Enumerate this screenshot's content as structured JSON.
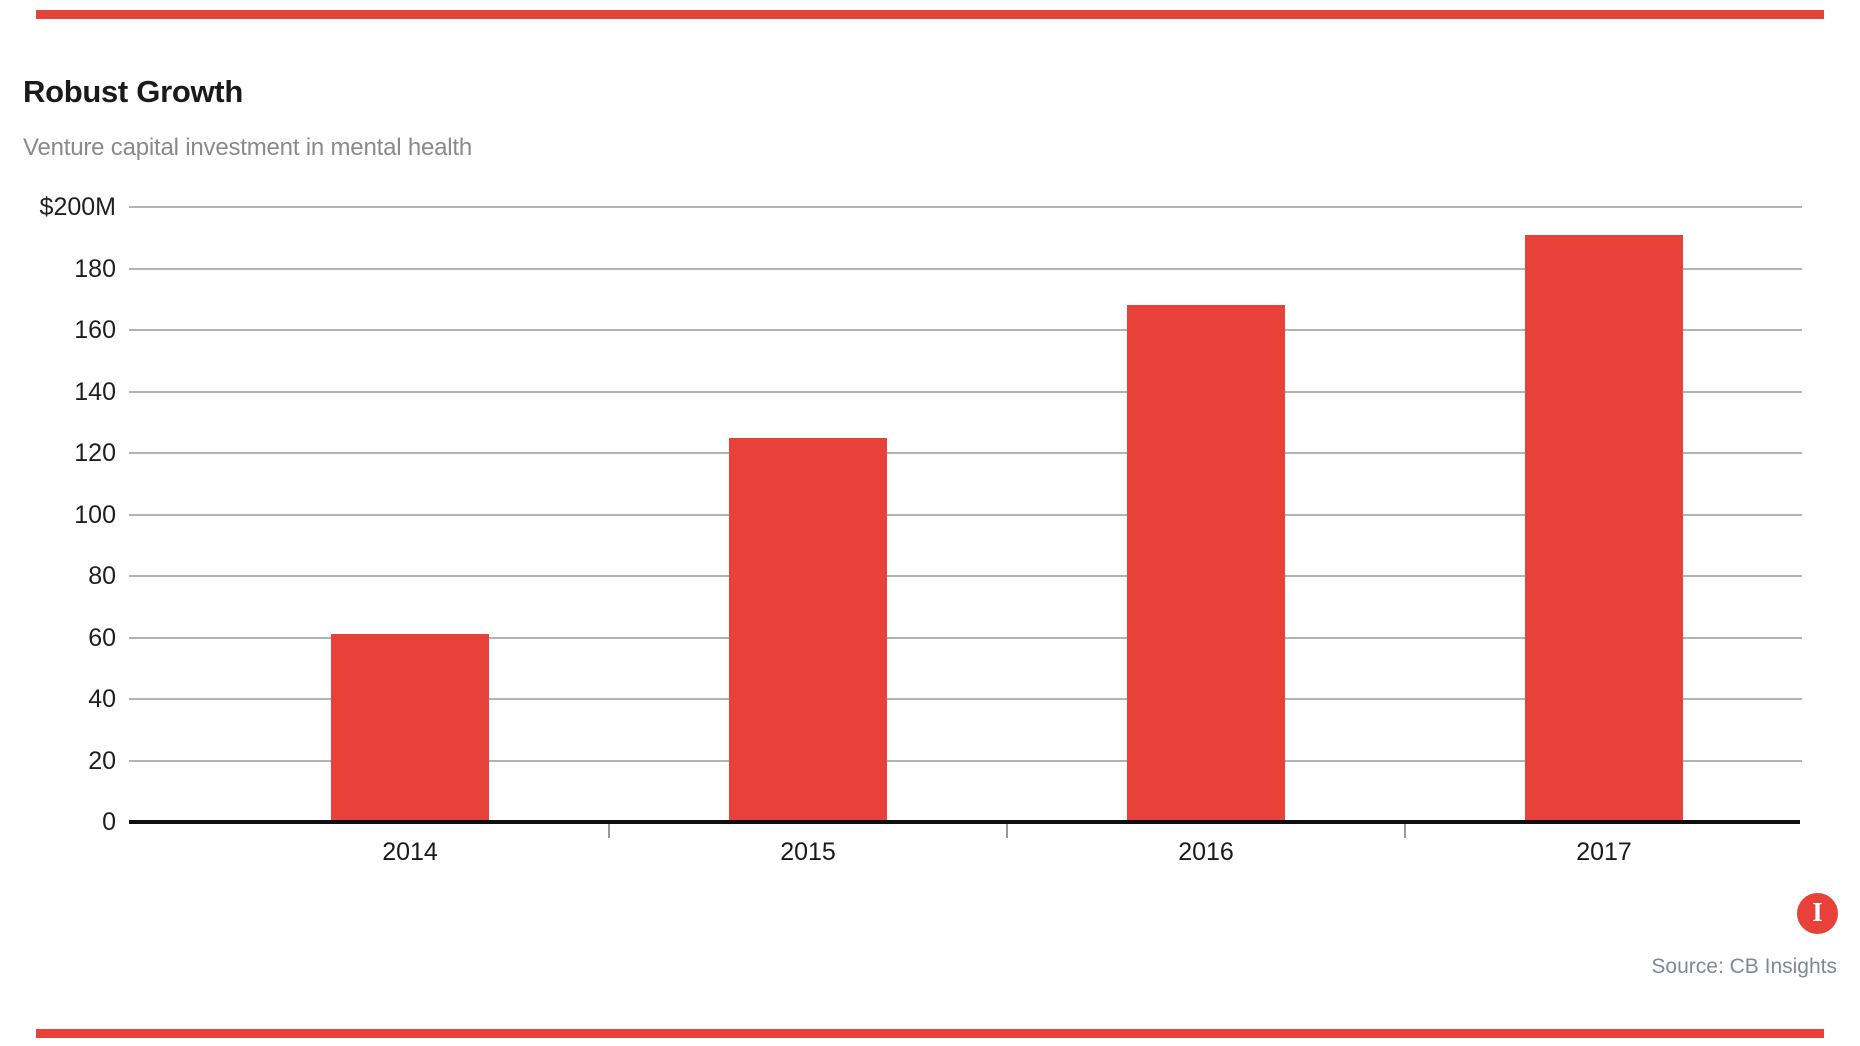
{
  "header": {
    "title": "Robust Growth",
    "subtitle": "Venture capital investment in mental health"
  },
  "chart_data": {
    "type": "bar",
    "title": "Robust Growth",
    "subtitle": "Venture capital investment in mental health",
    "categories": [
      "2014",
      "2015",
      "2016",
      "2017"
    ],
    "values": [
      61,
      125,
      168,
      191
    ],
    "unit": "$M",
    "xlabel": "",
    "ylabel": "",
    "ylim": [
      0,
      200
    ],
    "ytick_step": 20,
    "ytick_labels_top_to_bottom": [
      "$200M",
      "180",
      "160",
      "140",
      "120",
      "100",
      "80",
      "60",
      "40",
      "20",
      "0"
    ],
    "grid": "horizontal-only",
    "legend": "none",
    "bar_color": "#e8413a"
  },
  "footer": {
    "source": "Source: CB Insights",
    "logo_letter": "I"
  },
  "colors": {
    "accent_red": "#e8413a",
    "gridline_gray": "#b2b2b2",
    "axis_black": "#0f0f0f",
    "title_text": "#1a1a1a",
    "subtitle_text": "#8a8a8a",
    "source_text": "#7d8995",
    "tick_gray": "#9a9a9a"
  }
}
